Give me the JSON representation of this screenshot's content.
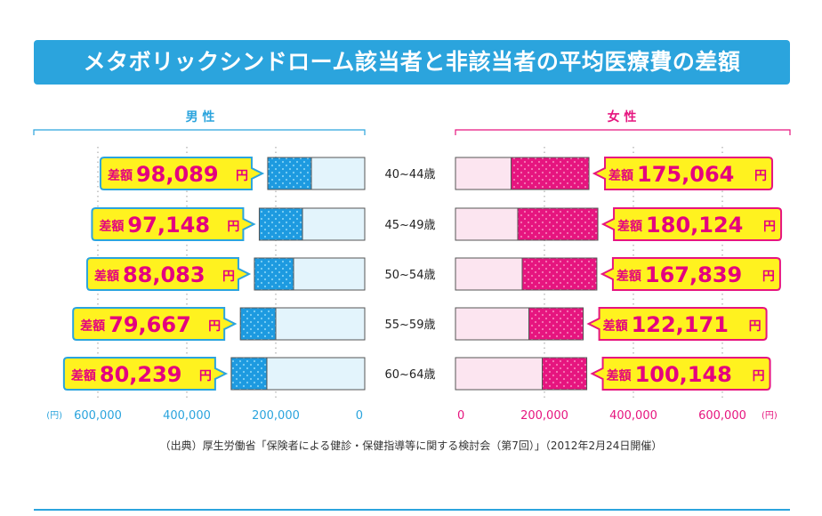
{
  "title": "メタボリックシンドローム該当者と非該当者の平均医療費の差額",
  "source": "（出典）厚生労働省「保険者による健診・保健指導等に関する検討会（第7回）」（2012年2月24日開催）",
  "colors": {
    "banner": "#2ba4dd",
    "male": "#1d9ae0",
    "male_light": "#e3f4fc",
    "female": "#e6157f",
    "female_light": "#fce5f0",
    "callout_fill": "#fff21f",
    "callout_text": "#e4007f"
  },
  "chart_data": {
    "type": "bar",
    "categories": [
      "40~44歳",
      "45~49歳",
      "50~54歳",
      "55~59歳",
      "60~64歳"
    ],
    "groups": [
      {
        "label": "男 性",
        "series": [
          {
            "values": [
              120000,
              140000,
              160000,
              200000,
              220000
            ]
          },
          {
            "values": [
              218089,
              237148,
              248083,
              279667,
              300239
            ]
          }
        ],
        "difference_label": "差額",
        "difference_values": [
          "98,089",
          "97,148",
          "88,083",
          "79,667",
          "80,239"
        ],
        "difference_unit": "円"
      },
      {
        "label": "女 性",
        "series": [
          {
            "values": [
              125000,
              140000,
              150000,
              165000,
              195000
            ]
          },
          {
            "values": [
              300064,
              320124,
              317839,
              287171,
              295148
            ]
          }
        ],
        "difference_label": "差額",
        "difference_values": [
          "175,064",
          "180,124",
          "167,839",
          "122,171",
          "100,148"
        ],
        "difference_unit": "円"
      }
    ],
    "x_axis": {
      "ticks": [
        "0",
        "200,000",
        "400,000",
        "600,000"
      ],
      "unit": "(円)",
      "range": [
        0,
        600000
      ]
    }
  }
}
